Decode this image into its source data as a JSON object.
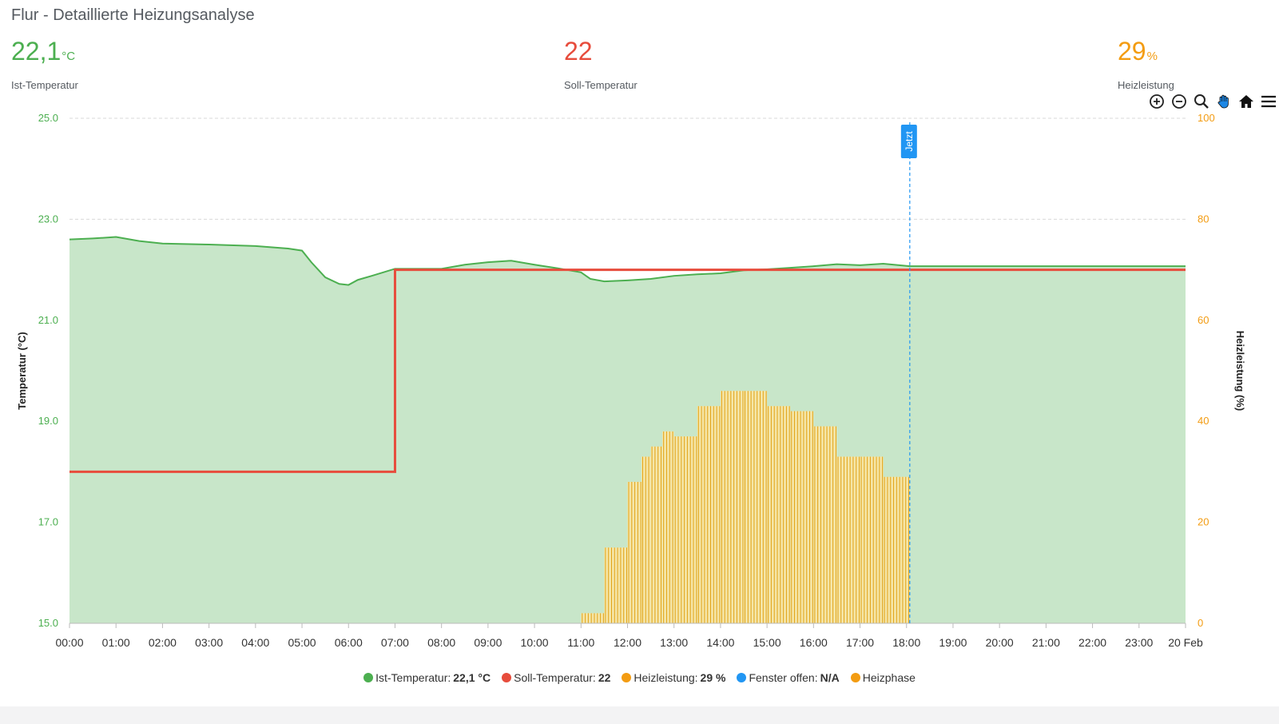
{
  "header": {
    "title": "Flur - Detaillierte Heizungsanalyse"
  },
  "stats": [
    {
      "value": "22,1",
      "unit": "°C",
      "label": "Ist-Temperatur",
      "color": "#4caf50"
    },
    {
      "value": "22",
      "unit": "",
      "label": "Soll-Temperatur",
      "color": "#e74c3c"
    },
    {
      "value": "29",
      "unit": "%",
      "label": "Heizleistung",
      "color": "#f39c12"
    }
  ],
  "toolbar": {
    "icons": [
      "zoom-in-icon",
      "zoom-out-icon",
      "zoom-icon",
      "pan-hand-icon",
      "home-icon",
      "menu-icon"
    ]
  },
  "legend": [
    {
      "name": "Ist-Temperatur:",
      "value": "22,1 °C",
      "color": "#4caf50"
    },
    {
      "name": "Soll-Temperatur:",
      "value": "22",
      "color": "#e74c3c"
    },
    {
      "name": "Heizleistung:",
      "value": "29 %",
      "color": "#f39c12"
    },
    {
      "name": "Fenster offen:",
      "value": "N/A",
      "color": "#2196f3"
    },
    {
      "name": "Heizphase",
      "value": "",
      "color": "#f39c12"
    }
  ],
  "chart_data": {
    "type": "line",
    "x_ticks": [
      "00:00",
      "01:00",
      "02:00",
      "03:00",
      "04:00",
      "05:00",
      "06:00",
      "07:00",
      "08:00",
      "09:00",
      "10:00",
      "11:00",
      "12:00",
      "13:00",
      "14:00",
      "15:00",
      "16:00",
      "17:00",
      "18:00",
      "19:00",
      "20:00",
      "21:00",
      "22:00",
      "23:00",
      "20 Feb"
    ],
    "xlim": [
      0,
      24
    ],
    "ylabel_left": "Temperatur (°C)",
    "ylabel_right": "Heizleistung (%)",
    "ylim_left": [
      15,
      25
    ],
    "ylim_right": [
      0,
      100
    ],
    "y_ticks_left": [
      "15.0",
      "17.0",
      "19.0",
      "21.0",
      "23.0",
      "25.0"
    ],
    "y_ticks_right": [
      "0",
      "20",
      "40",
      "60",
      "80",
      "100"
    ],
    "grid": true,
    "annotation": {
      "label": "Jetzt",
      "x": 18.07
    },
    "series": [
      {
        "name": "Ist-Temperatur",
        "axis": "left",
        "style": "area",
        "x": [
          0,
          0.5,
          1,
          1.5,
          2,
          3,
          4,
          4.7,
          5,
          5.2,
          5.5,
          5.8,
          6,
          6.2,
          6.5,
          7,
          8,
          8.5,
          9,
          9.5,
          10,
          10.5,
          11,
          11.2,
          11.5,
          12,
          12.5,
          13,
          13.5,
          14,
          14.5,
          15,
          15.5,
          16,
          16.5,
          17,
          17.5,
          18.07,
          24
        ],
        "y": [
          22.6,
          22.62,
          22.65,
          22.57,
          22.52,
          22.5,
          22.47,
          22.42,
          22.38,
          22.15,
          21.85,
          21.72,
          21.7,
          21.8,
          21.88,
          22.02,
          22.02,
          22.1,
          22.15,
          22.18,
          22.1,
          22.03,
          21.95,
          21.82,
          21.77,
          21.79,
          21.82,
          21.88,
          21.91,
          21.93,
          21.99,
          22.01,
          22.04,
          22.07,
          22.11,
          22.09,
          22.12,
          22.07,
          22.07
        ]
      },
      {
        "name": "Soll-Temperatur",
        "axis": "left",
        "style": "step",
        "x": [
          0,
          7,
          7,
          24
        ],
        "y": [
          18,
          18,
          22,
          22
        ]
      },
      {
        "name": "Heizleistung",
        "axis": "right",
        "style": "bar",
        "x": [
          11,
          11.5,
          12,
          12.3,
          12.5,
          12.75,
          13,
          13.5,
          14,
          14.5,
          15,
          15.5,
          16,
          16.5,
          17,
          17.5
        ],
        "y": [
          2,
          15,
          28,
          33,
          35,
          38,
          37,
          43,
          46,
          46,
          43,
          42,
          39,
          33,
          33,
          29
        ]
      }
    ]
  }
}
